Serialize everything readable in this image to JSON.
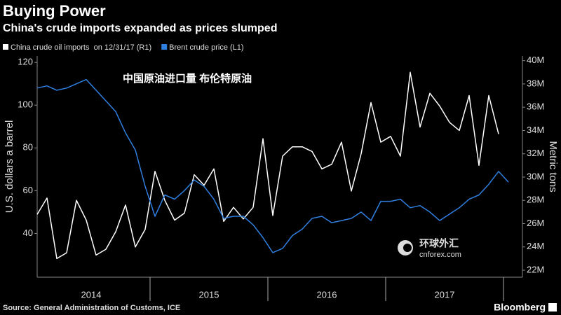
{
  "chart_data": {
    "type": "line",
    "title": "Buying Power",
    "subtitle": "China's crude imports expanded as prices slumped",
    "annotation": "中国原油进口量  布伦特原油",
    "watermark": {
      "name": "环球外汇",
      "site": "cnforex.com"
    },
    "source": "Source: General Administration of Customs, ICE",
    "brand": "Bloomberg",
    "y_label": "U.S. dollars a barrel",
    "y2_label": "Metric tons",
    "x": [
      "2014-01",
      "2014-02",
      "2014-03",
      "2014-04",
      "2014-05",
      "2014-06",
      "2014-07",
      "2014-08",
      "2014-09",
      "2014-10",
      "2014-11",
      "2014-12",
      "2015-01",
      "2015-02",
      "2015-03",
      "2015-04",
      "2015-05",
      "2015-06",
      "2015-07",
      "2015-08",
      "2015-09",
      "2015-10",
      "2015-11",
      "2015-12",
      "2016-01",
      "2016-02",
      "2016-03",
      "2016-04",
      "2016-05",
      "2016-06",
      "2016-07",
      "2016-08",
      "2016-09",
      "2016-10",
      "2016-11",
      "2016-12",
      "2017-01",
      "2017-02",
      "2017-03",
      "2017-04",
      "2017-05",
      "2017-06",
      "2017-07",
      "2017-08",
      "2017-09",
      "2017-10",
      "2017-11",
      "2017-12",
      "2018-01"
    ],
    "series": [
      {
        "name": "China crude oil imports  on 12/31/17 (R1)",
        "color": "#ffffff",
        "axis": "y2",
        "values": [
          26800000,
          28200000,
          23000000,
          23500000,
          28000000,
          26300000,
          23300000,
          23800000,
          25300000,
          27600000,
          24000000,
          25500000,
          30500000,
          28000000,
          26300000,
          26900000,
          30200000,
          29300000,
          30700000,
          26200000,
          27400000,
          26400000,
          27400000,
          33300000,
          26700000,
          31800000,
          32600000,
          32600000,
          32200000,
          30700000,
          31100000,
          33000000,
          28800000,
          32000000,
          36400000,
          33000000,
          33500000,
          31800000,
          39000000,
          34300000,
          37200000,
          36100000,
          34700000,
          34000000,
          37000000,
          31000000,
          37000000,
          33700000,
          null
        ]
      },
      {
        "name": "Brent crude price (L1)",
        "color": "#2f7fe0",
        "values": [
          108,
          109,
          107,
          108,
          110,
          112,
          107,
          102,
          97,
          87,
          79,
          62,
          48,
          58,
          56,
          60,
          65,
          62,
          56,
          47,
          48,
          48,
          44,
          38,
          31,
          33,
          39,
          42,
          47,
          48,
          45,
          46,
          47,
          50,
          46,
          55,
          55,
          56,
          52,
          53,
          50,
          46,
          49,
          52,
          56,
          58,
          63,
          69,
          64
        ]
      }
    ],
    "xticks": [
      {
        "value": "2014-07",
        "label": "2014"
      },
      {
        "value": "2015-07",
        "label": "2015"
      },
      {
        "value": "2016-07",
        "label": "2016"
      },
      {
        "value": "2017-07",
        "label": "2017"
      }
    ],
    "ylim": [
      19.5,
      123
    ],
    "yticks": [
      40,
      60,
      80,
      100,
      120
    ],
    "y2lim": [
      21400000,
      40400000
    ],
    "y2ticks": [
      {
        "value": 22000000,
        "label": "22M"
      },
      {
        "value": 24000000,
        "label": "24M"
      },
      {
        "value": 26000000,
        "label": "26M"
      },
      {
        "value": 28000000,
        "label": "28M"
      },
      {
        "value": 30000000,
        "label": "30M"
      },
      {
        "value": 32000000,
        "label": "32M"
      },
      {
        "value": 34000000,
        "label": "34M"
      },
      {
        "value": 36000000,
        "label": "36M"
      },
      {
        "value": 38000000,
        "label": "38M"
      },
      {
        "value": 40000000,
        "label": "40M"
      }
    ],
    "grid": false,
    "legend": "top-left"
  }
}
